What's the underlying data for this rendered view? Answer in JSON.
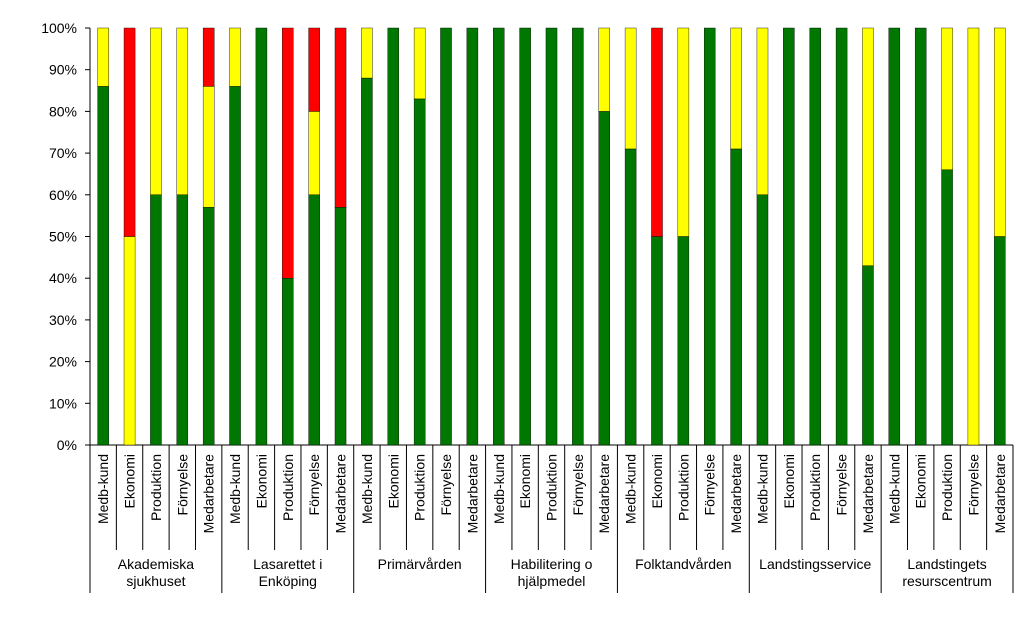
{
  "chart_data": {
    "type": "bar",
    "stacked": true,
    "percent": true,
    "y_ticks": [
      "0%",
      "10%",
      "20%",
      "30%",
      "40%",
      "50%",
      "60%",
      "70%",
      "80%",
      "90%",
      "100%"
    ],
    "ylim": [
      0,
      100
    ],
    "grid": false,
    "legend": "none",
    "colors": {
      "green": "#007700",
      "yellow": "#ffff00",
      "red": "#ff0000"
    },
    "groups": [
      {
        "label_lines": [
          "Akademiska",
          "sjukhuset"
        ],
        "bars": [
          {
            "label": "Medb-kund",
            "green": 86,
            "yellow": 14,
            "red": 0
          },
          {
            "label": "Ekonomi",
            "green": 0,
            "yellow": 50,
            "red": 50
          },
          {
            "label": "Produktion",
            "green": 60,
            "yellow": 40,
            "red": 0
          },
          {
            "label": "Förnyelse",
            "green": 60,
            "yellow": 40,
            "red": 0
          },
          {
            "label": "Medarbetare",
            "green": 57,
            "yellow": 29,
            "red": 14
          }
        ]
      },
      {
        "label_lines": [
          "Lasarettet i",
          "Enköping"
        ],
        "bars": [
          {
            "label": "Medb-kund",
            "green": 86,
            "yellow": 14,
            "red": 0
          },
          {
            "label": "Ekonomi",
            "green": 100,
            "yellow": 0,
            "red": 0
          },
          {
            "label": "Produktion",
            "green": 40,
            "yellow": 0,
            "red": 60
          },
          {
            "label": "Förnyelse",
            "green": 60,
            "yellow": 20,
            "red": 20
          },
          {
            "label": "Medarbetare",
            "green": 57,
            "yellow": 0,
            "red": 43
          }
        ]
      },
      {
        "label_lines": [
          "Primärvården"
        ],
        "bars": [
          {
            "label": "Medb-kund",
            "green": 88,
            "yellow": 12,
            "red": 0
          },
          {
            "label": "Ekonomi",
            "green": 100,
            "yellow": 0,
            "red": 0
          },
          {
            "label": "Produktion",
            "green": 83,
            "yellow": 17,
            "red": 0
          },
          {
            "label": "Förnyelse",
            "green": 100,
            "yellow": 0,
            "red": 0
          },
          {
            "label": "Medarbetare",
            "green": 100,
            "yellow": 0,
            "red": 0
          }
        ]
      },
      {
        "label_lines": [
          "Habilitering o",
          "hjälpmedel"
        ],
        "bars": [
          {
            "label": "Medb-kund",
            "green": 100,
            "yellow": 0,
            "red": 0
          },
          {
            "label": "Ekonomi",
            "green": 100,
            "yellow": 0,
            "red": 0
          },
          {
            "label": "Produktion",
            "green": 100,
            "yellow": 0,
            "red": 0
          },
          {
            "label": "Förnyelse",
            "green": 100,
            "yellow": 0,
            "red": 0
          },
          {
            "label": "Medarbetare",
            "green": 80,
            "yellow": 20,
            "red": 0
          }
        ]
      },
      {
        "label_lines": [
          "Folktandvården"
        ],
        "bars": [
          {
            "label": "Medb-kund",
            "green": 71,
            "yellow": 29,
            "red": 0
          },
          {
            "label": "Ekonomi",
            "green": 50,
            "yellow": 0,
            "red": 50
          },
          {
            "label": "Produktion",
            "green": 50,
            "yellow": 50,
            "red": 0
          },
          {
            "label": "Förnyelse",
            "green": 100,
            "yellow": 0,
            "red": 0
          },
          {
            "label": "Medarbetare",
            "green": 71,
            "yellow": 29,
            "red": 0
          }
        ]
      },
      {
        "label_lines": [
          "Landstingsservice"
        ],
        "bars": [
          {
            "label": "Medb-kund",
            "green": 60,
            "yellow": 40,
            "red": 0
          },
          {
            "label": "Ekonomi",
            "green": 100,
            "yellow": 0,
            "red": 0
          },
          {
            "label": "Produktion",
            "green": 100,
            "yellow": 0,
            "red": 0
          },
          {
            "label": "Förnyelse",
            "green": 100,
            "yellow": 0,
            "red": 0
          },
          {
            "label": "Medarbetare",
            "green": 43,
            "yellow": 57,
            "red": 0
          }
        ]
      },
      {
        "label_lines": [
          "Landstingets",
          "resurscentrum"
        ],
        "bars": [
          {
            "label": "Medb-kund",
            "green": 100,
            "yellow": 0,
            "red": 0
          },
          {
            "label": "Ekonomi",
            "green": 100,
            "yellow": 0,
            "red": 0
          },
          {
            "label": "Produktion",
            "green": 66,
            "yellow": 34,
            "red": 0
          },
          {
            "label": "Förnyelse",
            "green": 0,
            "yellow": 100,
            "red": 0
          },
          {
            "label": "Medarbetare",
            "green": 50,
            "yellow": 50,
            "red": 0
          }
        ]
      }
    ]
  }
}
